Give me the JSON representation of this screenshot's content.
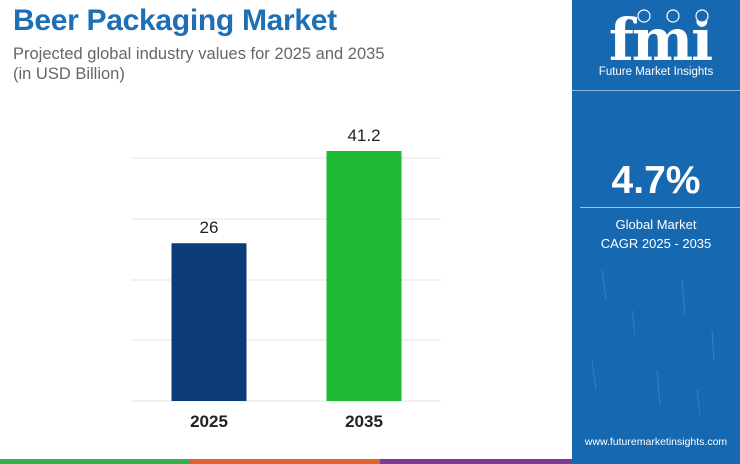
{
  "header": {
    "title": "Beer Packaging Market",
    "subtitle_line1": "Projected global industry values for 2025 and 2035",
    "subtitle_line2": "(in USD Billion)"
  },
  "chart_data": {
    "type": "bar",
    "categories": [
      "2025",
      "2035"
    ],
    "values": [
      26,
      41.2
    ],
    "value_labels": [
      "26",
      "41.2"
    ],
    "bar_colors": [
      "#0c3c78",
      "#1fb832"
    ],
    "ylim": [
      0,
      41.2
    ],
    "grid": true,
    "xlabel": "",
    "ylabel": ""
  },
  "sidebar": {
    "logo_text": "fmi",
    "brand": "Future Market Insights",
    "cagr_value": "4.7%",
    "cagr_label_line1": "Global Market",
    "cagr_label_line2": "CAGR 2025 - 2035",
    "url": "www.futuremarketinsights.com"
  },
  "colors": {
    "title": "#1e6fb3",
    "sidebar_bg": "#1668b0",
    "strip": [
      "#2fb24a",
      "#e0632b",
      "#7c3b94",
      "#1e6fb3"
    ]
  }
}
